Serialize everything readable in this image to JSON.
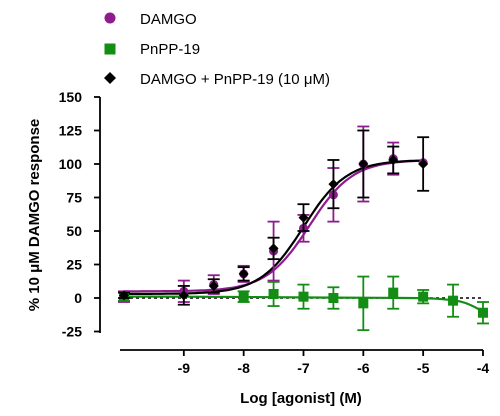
{
  "chart_data": {
    "type": "scatter",
    "title": "",
    "xlabel": "Log [agonist] (M)",
    "ylabel": "% 10 μM DAMGO response",
    "xlim": [
      -10,
      -4
    ],
    "ylim": [
      -35,
      150
    ],
    "x_ticks": [
      -9,
      -8,
      -7,
      -6,
      -5,
      -4
    ],
    "y_ticks": [
      150,
      125,
      100,
      75,
      50,
      25,
      0,
      -25
    ],
    "grid": false,
    "legend_position": "top-left",
    "reference_line": {
      "y": 0,
      "style": "dotted"
    },
    "series": [
      {
        "name": "DAMGO",
        "color": "#8e1c8e",
        "marker": "circle",
        "x": [
          -10,
          -9,
          -8.5,
          -8,
          -7.5,
          -7,
          -6.5,
          -6,
          -5.5,
          -5
        ],
        "y": [
          1,
          5,
          10,
          18,
          35,
          52,
          77,
          100,
          104,
          101
        ],
        "err": [
          4,
          8,
          7,
          6,
          22,
          10,
          20,
          28,
          12,
          0
        ],
        "fit": {
          "bottom": 5,
          "top": 103,
          "logEC50": -6.9,
          "hill": 1.2
        }
      },
      {
        "name": "PnPP-19",
        "color": "#138d13",
        "marker": "square",
        "x": [
          -10,
          -8,
          -7.5,
          -7,
          -6.5,
          -6,
          -5.5,
          -5,
          -4.5,
          -4
        ],
        "y": [
          1,
          1,
          3,
          1,
          0,
          -4,
          4,
          1,
          -2,
          -11
        ],
        "err": [
          3,
          4,
          9,
          9,
          8,
          20,
          12,
          5,
          12,
          8
        ],
        "fit": {
          "type": "curve",
          "points": [
            [
              -10,
              1
            ],
            [
              -9,
              1
            ],
            [
              -8,
              0.8
            ],
            [
              -7,
              0.4
            ],
            [
              -6,
              0.2
            ],
            [
              -5,
              0
            ],
            [
              -4.6,
              -1
            ],
            [
              -4.3,
              -3
            ],
            [
              -4,
              -10
            ]
          ]
        }
      },
      {
        "name": "DAMGO + PnPP-19 (10 μM)",
        "color": "#000000",
        "marker": "diamond",
        "x": [
          -10,
          -9,
          -8.5,
          -8,
          -7.5,
          -7,
          -6.5,
          -6,
          -5.5,
          -5
        ],
        "y": [
          2,
          2,
          9,
          18,
          37,
          60,
          85,
          100,
          103,
          100
        ],
        "err": [
          2,
          7,
          5,
          5,
          8,
          10,
          18,
          25,
          10,
          20
        ],
        "fit": {
          "bottom": 3,
          "top": 103,
          "logEC50": -7.0,
          "hill": 1.2
        }
      }
    ]
  }
}
